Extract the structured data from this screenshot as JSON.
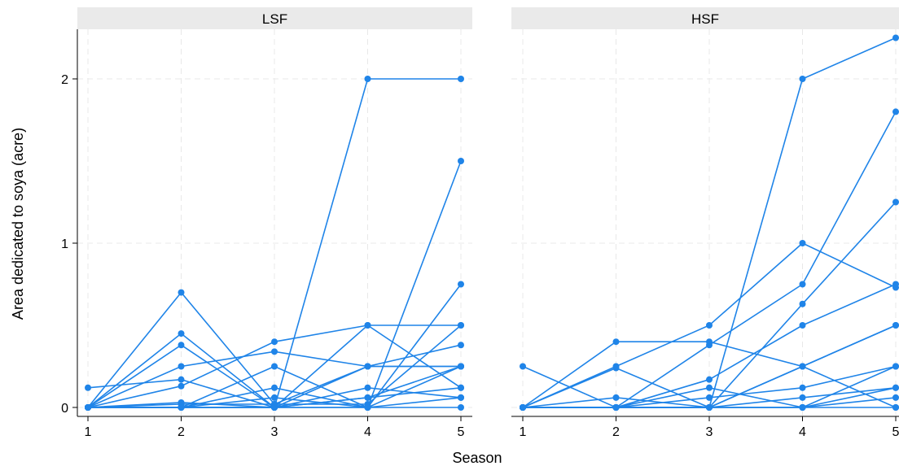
{
  "chart_data": {
    "type": "line",
    "color": "#1f84e8",
    "panel_header_color": "#eaeaea",
    "grid_color": "#e8e8e8",
    "ylabel": "Area dedicated to soya (acre)",
    "xlabel": "Season",
    "xticks": [
      1,
      2,
      3,
      4,
      5
    ],
    "yticks": [
      0,
      1,
      2
    ],
    "xlim": [
      1,
      5
    ],
    "ylim": [
      -0.05,
      2.3
    ],
    "grid": true,
    "panels": [
      {
        "title": "LSF",
        "series": [
          {
            "values": [
              0.12,
              0.17,
              0.0,
              0.25,
              0.25
            ]
          },
          {
            "values": [
              0.0,
              0.7,
              0.02,
              0.02,
              0.5
            ]
          },
          {
            "values": [
              0.0,
              0.45,
              0.0,
              2.0,
              2.0
            ]
          },
          {
            "values": [
              0.0,
              0.38,
              0.0,
              0.0,
              1.5
            ]
          },
          {
            "values": [
              0.0,
              0.25,
              0.34,
              0.25,
              0.25
            ]
          },
          {
            "values": [
              0.0,
              0.13,
              0.4,
              0.5,
              0.5
            ]
          },
          {
            "values": [
              0.0,
              0.0,
              0.25,
              0.0,
              0.75
            ]
          },
          {
            "values": [
              0.0,
              0.0,
              0.0,
              0.5,
              0.12
            ]
          },
          {
            "values": [
              0.0,
              0.02,
              0.02,
              0.25,
              0.38
            ]
          },
          {
            "values": [
              0.0,
              0.0,
              0.0,
              0.06,
              0.25
            ]
          },
          {
            "values": [
              0.0,
              0.0,
              0.12,
              0.0,
              0.06
            ]
          },
          {
            "values": [
              0.0,
              0.0,
              0.0,
              0.06,
              0.12
            ]
          },
          {
            "values": [
              0.0,
              0.0,
              0.06,
              0.0,
              0.0
            ]
          },
          {
            "values": [
              0.0,
              0.03,
              0.0,
              0.12,
              0.06
            ]
          },
          {
            "values": [
              0.0,
              0.0,
              0.0,
              0.0,
              0.25
            ]
          }
        ]
      },
      {
        "title": "HSF",
        "series": [
          {
            "values": [
              0.25,
              0.0,
              0.0,
              0.0,
              0.12
            ]
          },
          {
            "values": [
              0.0,
              0.4,
              0.4,
              0.25,
              0.5
            ]
          },
          {
            "values": [
              0.0,
              0.25,
              0.5,
              1.0,
              0.73
            ]
          },
          {
            "values": [
              0.0,
              0.24,
              0.0,
              2.0,
              2.25
            ]
          },
          {
            "values": [
              0.0,
              0.0,
              0.38,
              0.75,
              1.8
            ]
          },
          {
            "values": [
              0.0,
              0.0,
              0.0,
              0.63,
              1.25
            ]
          },
          {
            "values": [
              0.0,
              0.0,
              0.17,
              0.5,
              0.75
            ]
          },
          {
            "values": [
              0.0,
              0.0,
              0.0,
              0.25,
              0.5
            ]
          },
          {
            "values": [
              0.0,
              0.0,
              0.06,
              0.12,
              0.25
            ]
          },
          {
            "values": [
              0.0,
              0.0,
              0.0,
              0.06,
              0.12
            ]
          },
          {
            "values": [
              0.0,
              0.0,
              0.0,
              0.0,
              0.06
            ]
          },
          {
            "values": [
              0.0,
              0.06,
              0.0,
              0.0,
              0.25
            ]
          },
          {
            "values": [
              0.0,
              0.0,
              0.12,
              0.0,
              0.0
            ]
          },
          {
            "values": [
              0.0,
              0.0,
              0.0,
              0.25,
              0.0
            ]
          }
        ]
      }
    ]
  }
}
